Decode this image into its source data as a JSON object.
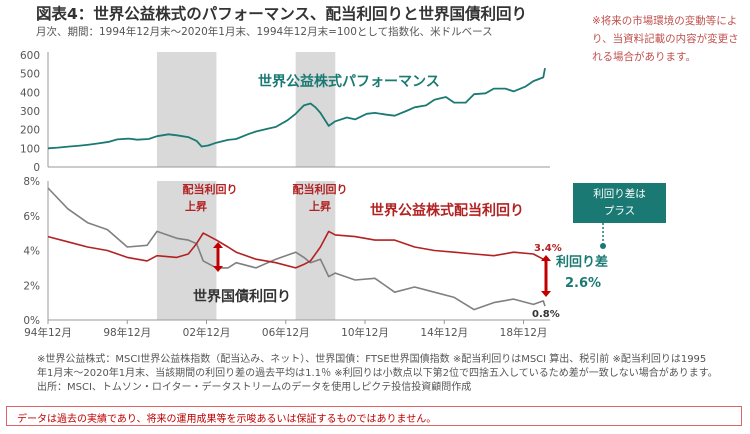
{
  "title": "図表4：世界公益株式のパフォーマンス、配当利回りと世界国債利回り",
  "subtitle": "月次、期間：1994年12月末～2020年1月末、1994年12月末=100として指数化、米ドルベース",
  "notice": "※将来の市場環境の変動等により、当資料記載の内容が変更される場合があります。",
  "footnotes": [
    "※世界公益株式：MSCI世界公益株指数（配当込み、ネット）、世界国債：FTSE世界国債指数 ※配当利回りはMSCI 算出、税引前 ※配当利回りは1995",
    "年1月末～2020年1月末、当該期間の利回り差の過去平均は1.1％ ※利回りは小数点以下第2位で四捨五入しているため差が一致しない場合があります。",
    "出所：MSCI、トムソン・ロイター・データストリームのデータを使用しピクテ投信投資顧問作成"
  ],
  "disclaimer": "データは過去の実績であり、将来の運用成果等を示唆あるいは保証するものではありません。",
  "colors": {
    "equity": "#1a7a73",
    "dividend": "#b22222",
    "bond": "#808080",
    "shade": "#d9d9d9",
    "arrow": "#c00000"
  },
  "chart_data": [
    {
      "type": "line",
      "title": "",
      "ylim": [
        0,
        600
      ],
      "yticks": [
        "0",
        "100",
        "200",
        "300",
        "400",
        "500",
        "600"
      ],
      "series": [
        {
          "name": "世界公益株式パフォーマンス",
          "x": [
            "1994-12",
            "1995-06",
            "1996-01",
            "1996-06",
            "1997-01",
            "1997-06",
            "1998-01",
            "1998-06",
            "1999-01",
            "1999-06",
            "2000-01",
            "2000-06",
            "2001-01",
            "2001-06",
            "2002-01",
            "2002-06",
            "2002-09",
            "2003-01",
            "2003-06",
            "2004-01",
            "2004-06",
            "2005-01",
            "2005-06",
            "2006-01",
            "2006-06",
            "2007-01",
            "2007-06",
            "2007-11",
            "2008-03",
            "2008-06",
            "2008-09",
            "2009-02",
            "2009-06",
            "2010-01",
            "2010-06",
            "2011-01",
            "2011-06",
            "2012-01",
            "2012-06",
            "2013-01",
            "2013-06",
            "2014-01",
            "2014-06",
            "2015-01",
            "2015-06",
            "2016-01",
            "2016-06",
            "2017-01",
            "2017-06",
            "2018-01",
            "2018-06",
            "2019-01",
            "2019-06",
            "2019-12",
            "2020-01"
          ],
          "y": [
            100,
            104,
            110,
            113,
            120,
            126,
            135,
            148,
            152,
            146,
            150,
            165,
            175,
            170,
            160,
            140,
            110,
            115,
            130,
            145,
            150,
            175,
            190,
            205,
            215,
            250,
            285,
            330,
            340,
            320,
            290,
            220,
            245,
            265,
            255,
            285,
            290,
            280,
            275,
            300,
            320,
            330,
            360,
            375,
            345,
            345,
            390,
            395,
            420,
            420,
            405,
            430,
            460,
            480,
            530
          ]
        }
      ]
    },
    {
      "type": "line",
      "title": "",
      "ylim": [
        0,
        8
      ],
      "yticks": [
        "0%",
        "2%",
        "4%",
        "6%",
        "8%"
      ],
      "xticks": [
        "94年12月",
        "98年12月",
        "02年12月",
        "06年12月",
        "10年12月",
        "14年12月",
        "18年12月"
      ],
      "series": [
        {
          "name": "世界公益株式配当利回り",
          "x": [
            "1994-12",
            "1995-12",
            "1996-12",
            "1997-12",
            "1998-12",
            "1999-12",
            "2000-06",
            "2001-06",
            "2002-01",
            "2002-06",
            "2002-10",
            "2003-06",
            "2004-01",
            "2004-06",
            "2005-06",
            "2006-06",
            "2007-06",
            "2007-11",
            "2008-03",
            "2008-09",
            "2009-02",
            "2009-06",
            "2010-06",
            "2011-06",
            "2012-06",
            "2013-06",
            "2014-06",
            "2015-06",
            "2016-06",
            "2017-06",
            "2018-06",
            "2019-06",
            "2019-12",
            "2020-01"
          ],
          "y": [
            4.8,
            4.5,
            4.2,
            4.0,
            3.6,
            3.4,
            3.7,
            3.6,
            3.8,
            4.4,
            5.0,
            4.6,
            4.2,
            3.9,
            3.5,
            3.3,
            3.0,
            3.2,
            3.4,
            4.2,
            5.1,
            4.9,
            4.8,
            4.6,
            4.6,
            4.2,
            4.0,
            3.9,
            3.8,
            3.7,
            3.9,
            3.8,
            3.5,
            3.4
          ]
        },
        {
          "name": "世界国債利回り",
          "x": [
            "1994-12",
            "1995-12",
            "1996-12",
            "1997-12",
            "1998-12",
            "1999-12",
            "2000-06",
            "2001-06",
            "2002-01",
            "2002-06",
            "2002-10",
            "2003-06",
            "2004-01",
            "2004-06",
            "2005-06",
            "2006-06",
            "2007-06",
            "2007-11",
            "2008-03",
            "2008-09",
            "2009-02",
            "2009-06",
            "2010-06",
            "2011-06",
            "2012-06",
            "2013-06",
            "2014-06",
            "2015-06",
            "2016-06",
            "2017-06",
            "2018-06",
            "2019-06",
            "2019-12",
            "2020-01"
          ],
          "y": [
            7.6,
            6.4,
            5.6,
            5.2,
            4.2,
            4.3,
            5.1,
            4.7,
            4.6,
            4.4,
            3.4,
            3.0,
            3.0,
            3.3,
            3.0,
            3.5,
            3.9,
            3.6,
            3.3,
            3.5,
            2.5,
            2.7,
            2.3,
            2.4,
            1.6,
            1.9,
            1.6,
            1.3,
            0.6,
            1.0,
            1.2,
            0.9,
            1.1,
            0.8
          ]
        }
      ],
      "annotations": [
        {
          "label": "世界公益株式配当利回り"
        },
        {
          "label": "世界国債利回り"
        },
        {
          "label": "配当利回り上昇",
          "line1": "配当利回り",
          "line2": "上昇"
        },
        {
          "label": "配当利回り上昇",
          "line1": "配当利回り",
          "line2": "上昇"
        },
        {
          "label": "3.4%"
        },
        {
          "label": "0.8%"
        },
        {
          "label": "利回り差"
        },
        {
          "label": "2.6%"
        }
      ]
    }
  ],
  "shaded_periods": [
    {
      "start": "2000-06",
      "end": "2003-06"
    },
    {
      "start": "2007-06",
      "end": "2009-06"
    }
  ],
  "top_label": "世界公益株式パフォーマンス",
  "badge": {
    "line1": "利回り差は",
    "line2": "プラス"
  }
}
